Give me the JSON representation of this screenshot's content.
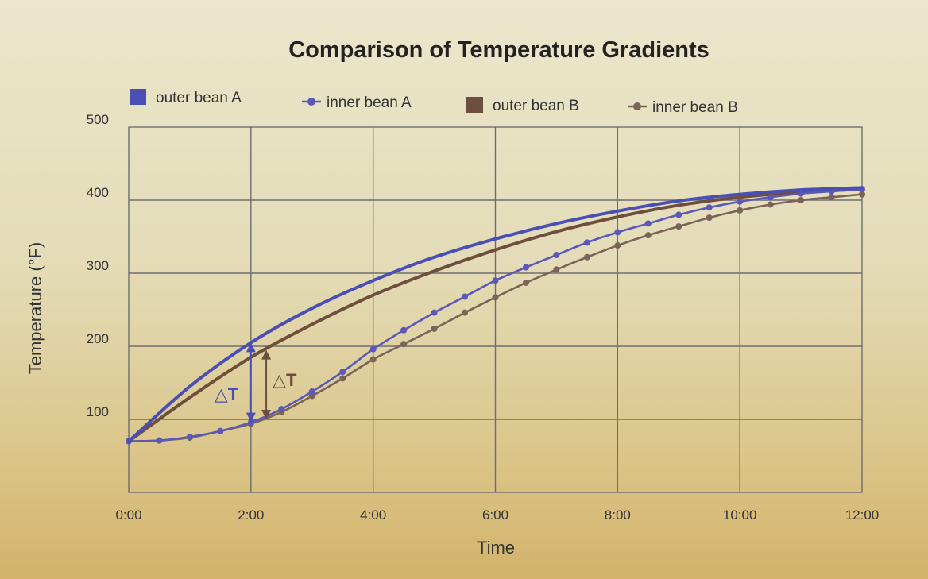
{
  "chart_data": {
    "type": "line",
    "title": "Comparison of Temperature Gradients",
    "xlabel": "Time",
    "ylabel": "Temperature (°F)",
    "x_ticks": [
      "0:00",
      "2:00",
      "4:00",
      "6:00",
      "8:00",
      "10:00",
      "12:00"
    ],
    "y_ticks": [
      "100",
      "200",
      "300",
      "400",
      "500"
    ],
    "xlim_minutes": [
      0,
      12
    ],
    "ylim": [
      0,
      500
    ],
    "grid": true,
    "legend_position": "top",
    "series": [
      {
        "name": "outer bean A",
        "color": "#4a4fb5",
        "marker": "none",
        "x": [
          0,
          1,
          2,
          3,
          4,
          5,
          6,
          7,
          8,
          9,
          10,
          11,
          12
        ],
        "y": [
          70,
          145,
          205,
          252,
          290,
          322,
          347,
          368,
          385,
          399,
          408,
          414,
          417
        ]
      },
      {
        "name": "inner bean A",
        "color": "#5a58b8",
        "marker": "dot",
        "x": [
          0,
          0.5,
          1,
          1.5,
          2,
          2.5,
          3,
          3.5,
          4,
          4.5,
          5,
          5.5,
          6,
          6.5,
          7,
          7.5,
          8,
          8.5,
          9,
          9.5,
          10,
          10.5,
          11,
          11.5,
          12
        ],
        "y": [
          70,
          71,
          76,
          84,
          96,
          114,
          138,
          165,
          196,
          222,
          246,
          268,
          290,
          308,
          325,
          342,
          356,
          368,
          380,
          390,
          398,
          404,
          409,
          412,
          415
        ]
      },
      {
        "name": "outer bean B",
        "color": "#6e4e3c",
        "marker": "none",
        "x": [
          0,
          1,
          2,
          3,
          4,
          5,
          6,
          7,
          8,
          9,
          10,
          11,
          12
        ],
        "y": [
          70,
          130,
          185,
          230,
          270,
          303,
          332,
          357,
          377,
          393,
          404,
          411,
          415
        ]
      },
      {
        "name": "inner bean B",
        "color": "#7a6458",
        "marker": "dot",
        "x": [
          0,
          0.5,
          1,
          1.5,
          2,
          2.5,
          3,
          3.5,
          4,
          4.5,
          5,
          5.5,
          6,
          6.5,
          7,
          7.5,
          8,
          8.5,
          9,
          9.5,
          10,
          10.5,
          11,
          11.5,
          12
        ],
        "y": [
          70,
          71,
          75,
          84,
          94,
          110,
          132,
          156,
          182,
          203,
          224,
          246,
          267,
          287,
          305,
          322,
          338,
          352,
          364,
          376,
          386,
          394,
          400,
          404,
          408
        ]
      }
    ],
    "annotations": [
      {
        "label": "△T",
        "x": 2,
        "y_top": 205,
        "y_bottom": 96,
        "color": "#4a4fb5"
      },
      {
        "label": "△T",
        "x": 2.25,
        "y_top": 195,
        "y_bottom": 100,
        "color": "#6e4e3c"
      }
    ]
  }
}
